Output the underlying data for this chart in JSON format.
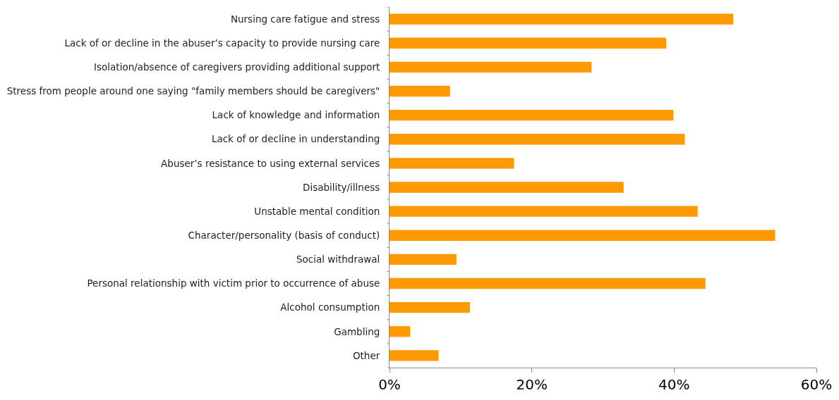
{
  "chart_data": {
    "type": "bar",
    "orientation": "horizontal",
    "categories": [
      "Nursing care fatigue and stress",
      "Lack of or decline in the abuser’s capacity to provide nursing care",
      "Isolation/absence of caregivers providing additional support",
      "Stress from people around one saying \"family members should be caregivers\"",
      "Lack of knowledge and information",
      "Lack of or decline in understanding",
      "Abuser’s resistance to using external services",
      "Disability/illness",
      "Unstable mental condition",
      "Character/personality (basis of conduct)",
      "Social withdrawal",
      "Personal relationship with victim prior to occurrence of abuse",
      "Alcohol consumption",
      "Gambling",
      "Other"
    ],
    "values": [
      48.3,
      38.9,
      28.4,
      8.5,
      39.9,
      41.5,
      17.5,
      32.9,
      43.3,
      54.2,
      9.4,
      44.4,
      11.3,
      2.9,
      6.9
    ],
    "color": "#ff9900",
    "xlim": [
      0,
      60
    ],
    "xticks": [
      {
        "value": 0,
        "label": "0%"
      },
      {
        "value": 20,
        "label": "20%"
      },
      {
        "value": 40,
        "label": "40%"
      },
      {
        "value": 60,
        "label": "60%"
      }
    ]
  }
}
